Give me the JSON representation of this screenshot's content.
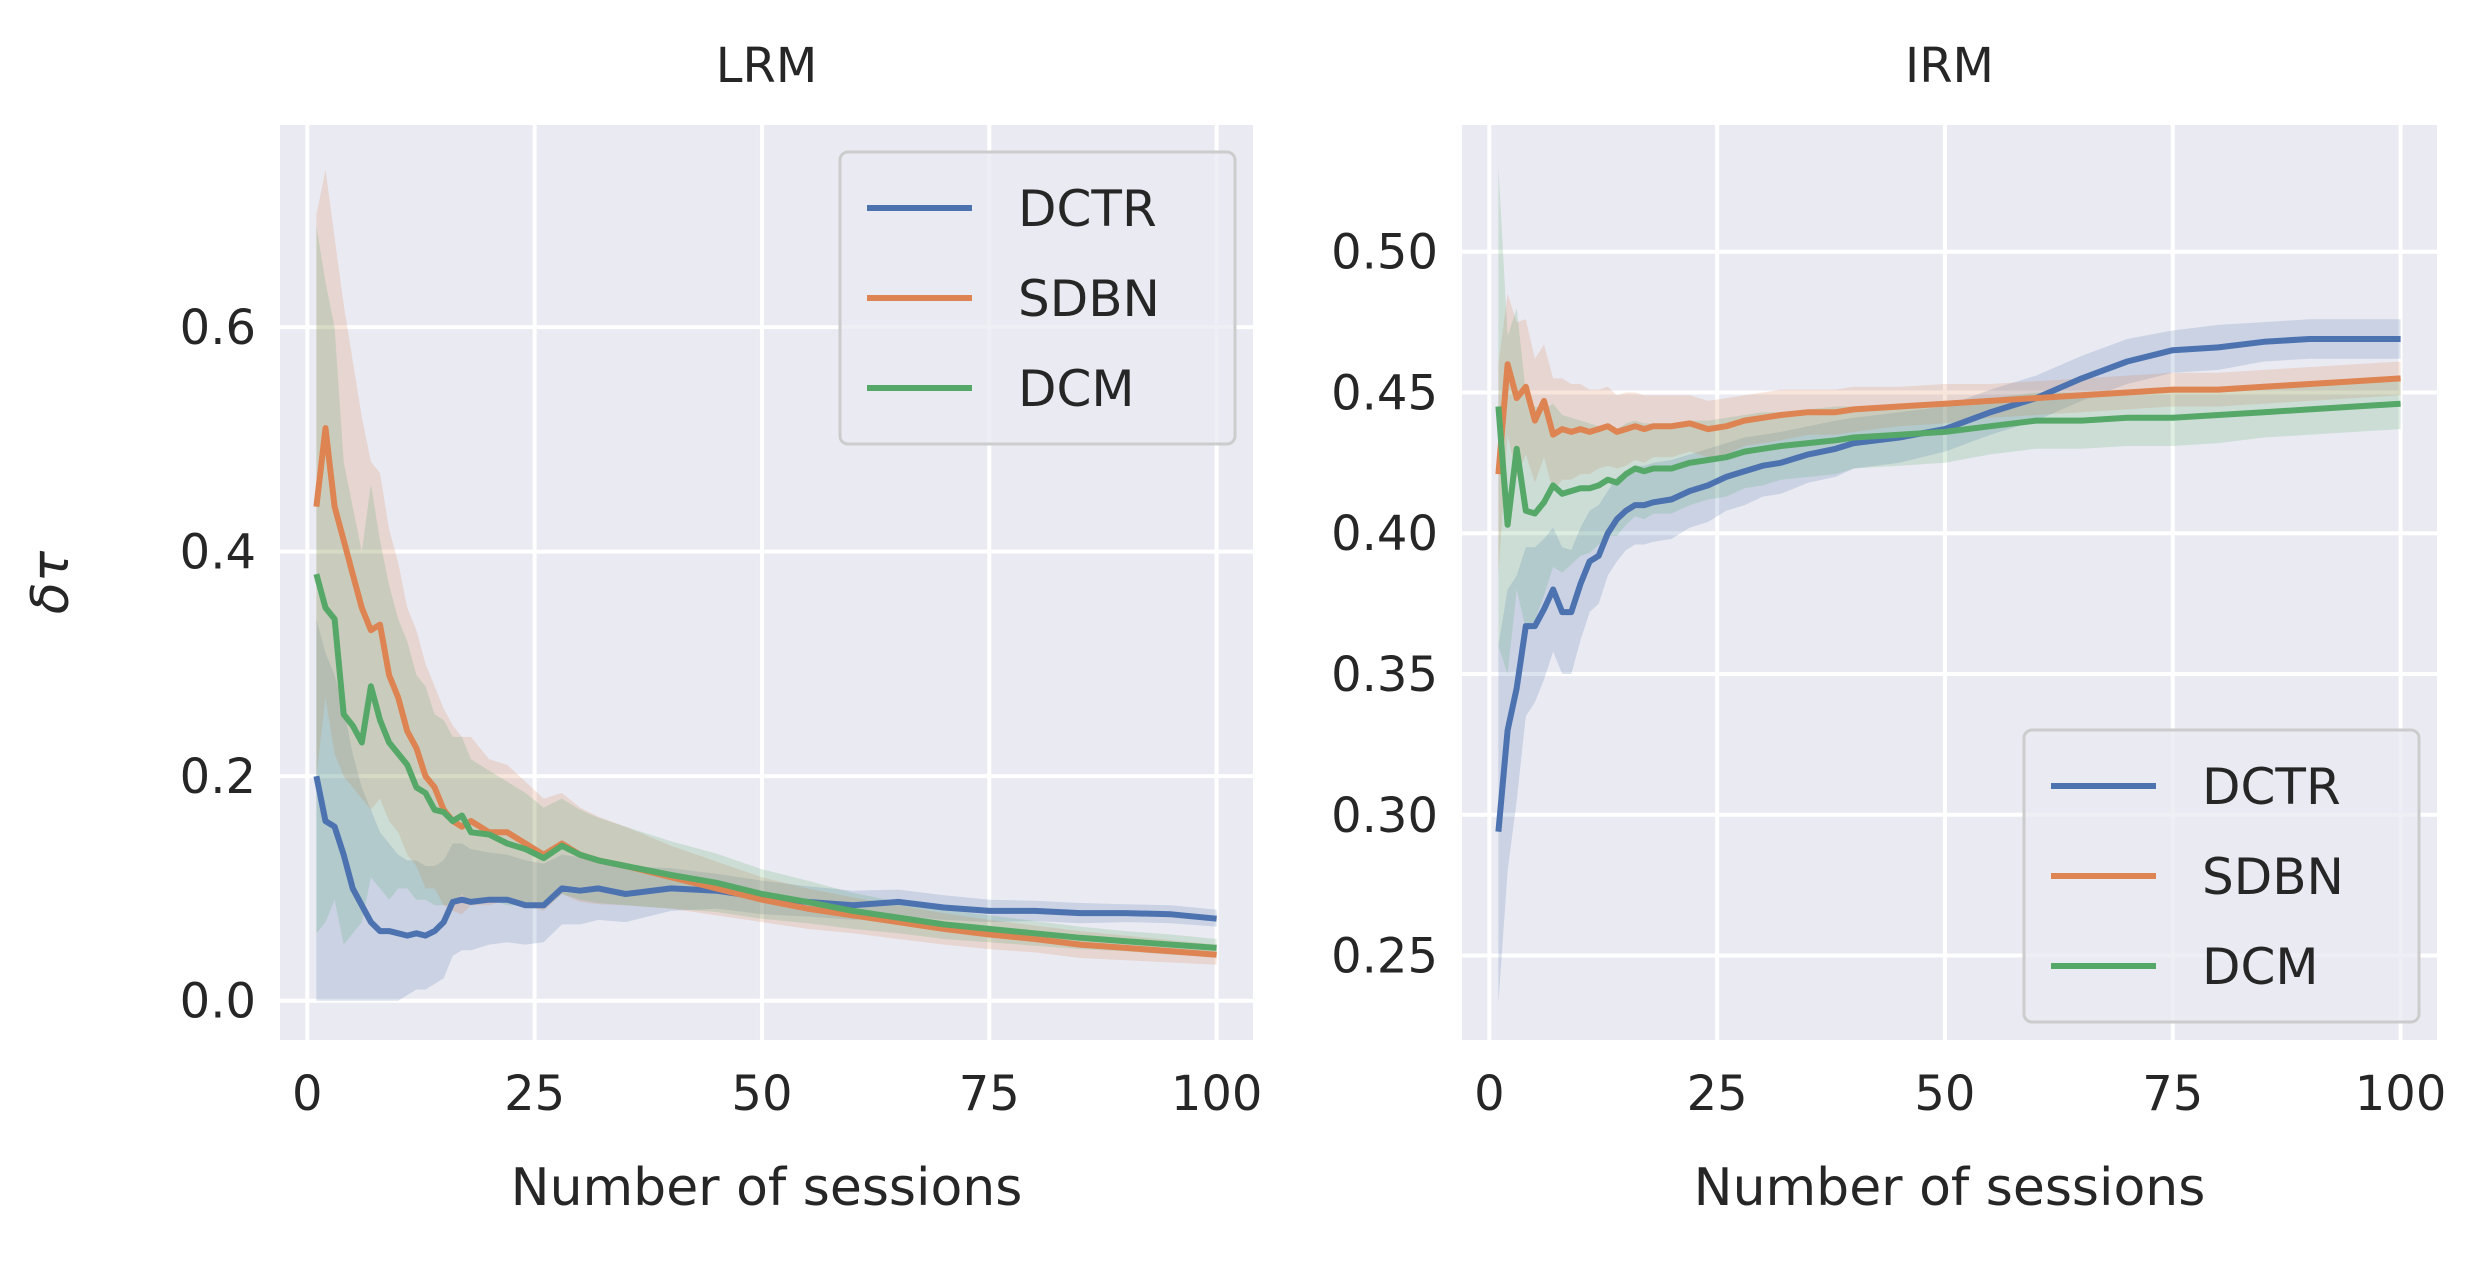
{
  "chart_data": [
    {
      "type": "line",
      "title": "LRM",
      "xlabel": "Number of sessions",
      "ylabel": "δτ",
      "xlim": [
        -3,
        104
      ],
      "ylim": [
        -0.035,
        0.78
      ],
      "xticks": [
        0,
        25,
        50,
        75,
        100
      ],
      "xtick_labels": [
        "0",
        "25",
        "50",
        "75",
        "100"
      ],
      "yticks": [
        0.0,
        0.2,
        0.4,
        0.6
      ],
      "ytick_labels": [
        "0.0",
        "0.2",
        "0.4",
        "0.6"
      ],
      "grid": true,
      "legend_position": "top-right",
      "series": [
        {
          "name": "DCTR",
          "color": "#4c72b0",
          "x": [
            1,
            2,
            3,
            4,
            5,
            6,
            7,
            8,
            9,
            10,
            11,
            12,
            13,
            14,
            15,
            16,
            17,
            18,
            20,
            22,
            24,
            26,
            28,
            30,
            32,
            35,
            40,
            45,
            50,
            55,
            60,
            65,
            70,
            75,
            80,
            85,
            90,
            95,
            100
          ],
          "y": [
            0.2,
            0.16,
            0.155,
            0.13,
            0.1,
            0.085,
            0.07,
            0.062,
            0.062,
            0.06,
            0.058,
            0.06,
            0.058,
            0.062,
            0.07,
            0.088,
            0.09,
            0.088,
            0.09,
            0.09,
            0.085,
            0.085,
            0.1,
            0.098,
            0.1,
            0.095,
            0.1,
            0.098,
            0.092,
            0.088,
            0.085,
            0.088,
            0.083,
            0.08,
            0.08,
            0.078,
            0.078,
            0.077,
            0.073
          ],
          "upper": [
            0.34,
            0.31,
            0.29,
            0.26,
            0.22,
            0.19,
            0.17,
            0.15,
            0.14,
            0.13,
            0.125,
            0.125,
            0.12,
            0.12,
            0.125,
            0.14,
            0.14,
            0.135,
            0.132,
            0.13,
            0.125,
            0.122,
            0.13,
            0.128,
            0.127,
            0.12,
            0.118,
            0.113,
            0.107,
            0.102,
            0.098,
            0.099,
            0.094,
            0.09,
            0.089,
            0.087,
            0.086,
            0.085,
            0.081
          ],
          "lower": [
            0.0,
            0.0,
            0.0,
            0.0,
            0.0,
            0.0,
            0.0,
            0.0,
            0.0,
            0.0,
            0.005,
            0.01,
            0.01,
            0.015,
            0.02,
            0.04,
            0.045,
            0.045,
            0.05,
            0.052,
            0.05,
            0.052,
            0.068,
            0.068,
            0.072,
            0.07,
            0.08,
            0.082,
            0.077,
            0.075,
            0.072,
            0.076,
            0.072,
            0.07,
            0.071,
            0.069,
            0.07,
            0.069,
            0.066
          ]
        },
        {
          "name": "SDBN",
          "color": "#dd8452",
          "x": [
            1,
            2,
            3,
            4,
            5,
            6,
            7,
            8,
            9,
            10,
            11,
            12,
            13,
            14,
            15,
            16,
            17,
            18,
            20,
            22,
            24,
            26,
            28,
            30,
            32,
            35,
            40,
            45,
            50,
            55,
            60,
            65,
            70,
            75,
            80,
            85,
            90,
            95,
            100
          ],
          "y": [
            0.44,
            0.51,
            0.44,
            0.41,
            0.38,
            0.35,
            0.33,
            0.335,
            0.29,
            0.27,
            0.24,
            0.225,
            0.2,
            0.19,
            0.17,
            0.16,
            0.155,
            0.16,
            0.15,
            0.15,
            0.14,
            0.13,
            0.14,
            0.13,
            0.125,
            0.12,
            0.11,
            0.1,
            0.09,
            0.082,
            0.076,
            0.07,
            0.064,
            0.059,
            0.055,
            0.05,
            0.047,
            0.044,
            0.041
          ],
          "upper": [
            0.7,
            0.74,
            0.68,
            0.62,
            0.57,
            0.52,
            0.48,
            0.47,
            0.42,
            0.39,
            0.35,
            0.33,
            0.3,
            0.28,
            0.26,
            0.245,
            0.235,
            0.235,
            0.215,
            0.21,
            0.195,
            0.18,
            0.185,
            0.172,
            0.164,
            0.155,
            0.138,
            0.124,
            0.11,
            0.1,
            0.092,
            0.085,
            0.078,
            0.072,
            0.067,
            0.062,
            0.058,
            0.054,
            0.05
          ],
          "lower": [
            0.2,
            0.27,
            0.22,
            0.2,
            0.19,
            0.18,
            0.17,
            0.18,
            0.16,
            0.15,
            0.13,
            0.12,
            0.1,
            0.1,
            0.085,
            0.08,
            0.077,
            0.085,
            0.085,
            0.09,
            0.085,
            0.08,
            0.095,
            0.088,
            0.086,
            0.085,
            0.082,
            0.076,
            0.07,
            0.064,
            0.06,
            0.055,
            0.05,
            0.046,
            0.043,
            0.038,
            0.036,
            0.034,
            0.032
          ]
        },
        {
          "name": "DCM",
          "color": "#55a868",
          "x": [
            1,
            2,
            3,
            4,
            5,
            6,
            7,
            8,
            9,
            10,
            11,
            12,
            13,
            14,
            15,
            16,
            17,
            18,
            20,
            22,
            24,
            26,
            28,
            30,
            32,
            35,
            40,
            45,
            50,
            55,
            60,
            65,
            70,
            75,
            80,
            85,
            90,
            95,
            100
          ],
          "y": [
            0.38,
            0.35,
            0.34,
            0.255,
            0.245,
            0.23,
            0.28,
            0.25,
            0.23,
            0.22,
            0.21,
            0.19,
            0.185,
            0.17,
            0.168,
            0.16,
            0.165,
            0.15,
            0.148,
            0.14,
            0.135,
            0.127,
            0.138,
            0.13,
            0.125,
            0.12,
            0.112,
            0.105,
            0.095,
            0.088,
            0.08,
            0.074,
            0.068,
            0.064,
            0.06,
            0.056,
            0.053,
            0.05,
            0.047
          ],
          "upper": [
            0.69,
            0.64,
            0.6,
            0.48,
            0.44,
            0.4,
            0.46,
            0.41,
            0.37,
            0.34,
            0.32,
            0.29,
            0.28,
            0.255,
            0.25,
            0.235,
            0.235,
            0.215,
            0.205,
            0.195,
            0.185,
            0.172,
            0.18,
            0.17,
            0.163,
            0.155,
            0.142,
            0.131,
            0.117,
            0.107,
            0.096,
            0.088,
            0.081,
            0.076,
            0.071,
            0.066,
            0.062,
            0.059,
            0.055
          ],
          "lower": [
            0.06,
            0.07,
            0.09,
            0.05,
            0.06,
            0.07,
            0.11,
            0.1,
            0.09,
            0.1,
            0.1,
            0.09,
            0.09,
            0.085,
            0.085,
            0.085,
            0.095,
            0.085,
            0.09,
            0.085,
            0.085,
            0.082,
            0.095,
            0.09,
            0.087,
            0.085,
            0.082,
            0.079,
            0.073,
            0.069,
            0.064,
            0.06,
            0.055,
            0.052,
            0.049,
            0.046,
            0.044,
            0.041,
            0.039
          ]
        }
      ]
    },
    {
      "type": "line",
      "title": "IRM",
      "xlabel": "Number of sessions",
      "ylabel": "",
      "xlim": [
        -3,
        104
      ],
      "ylim": [
        0.22,
        0.545
      ],
      "xticks": [
        0,
        25,
        50,
        75,
        100
      ],
      "xtick_labels": [
        "0",
        "25",
        "50",
        "75",
        "100"
      ],
      "yticks": [
        0.25,
        0.3,
        0.35,
        0.4,
        0.45,
        0.5
      ],
      "ytick_labels": [
        "0.25",
        "0.30",
        "0.35",
        "0.40",
        "0.45",
        "0.50"
      ],
      "grid": true,
      "legend_position": "bottom-right",
      "series": [
        {
          "name": "DCTR",
          "color": "#4c72b0",
          "x": [
            1,
            2,
            3,
            4,
            5,
            6,
            7,
            8,
            9,
            10,
            11,
            12,
            13,
            14,
            15,
            16,
            17,
            18,
            20,
            22,
            24,
            26,
            28,
            30,
            32,
            35,
            38,
            40,
            45,
            50,
            55,
            60,
            65,
            70,
            75,
            80,
            85,
            90,
            95,
            100
          ],
          "y": [
            0.294,
            0.33,
            0.345,
            0.367,
            0.367,
            0.373,
            0.38,
            0.372,
            0.372,
            0.382,
            0.39,
            0.392,
            0.4,
            0.405,
            0.408,
            0.41,
            0.41,
            0.411,
            0.412,
            0.415,
            0.417,
            0.42,
            0.422,
            0.424,
            0.425,
            0.428,
            0.43,
            0.432,
            0.434,
            0.437,
            0.443,
            0.448,
            0.455,
            0.461,
            0.465,
            0.466,
            0.468,
            0.469,
            0.469,
            0.469
          ],
          "upper": [
            0.36,
            0.38,
            0.385,
            0.395,
            0.395,
            0.398,
            0.402,
            0.395,
            0.394,
            0.402,
            0.408,
            0.41,
            0.415,
            0.42,
            0.422,
            0.424,
            0.424,
            0.425,
            0.426,
            0.428,
            0.43,
            0.432,
            0.434,
            0.435,
            0.436,
            0.438,
            0.44,
            0.441,
            0.443,
            0.445,
            0.451,
            0.456,
            0.463,
            0.469,
            0.472,
            0.474,
            0.475,
            0.476,
            0.476,
            0.476
          ],
          "lower": [
            0.233,
            0.28,
            0.305,
            0.335,
            0.34,
            0.348,
            0.358,
            0.35,
            0.35,
            0.362,
            0.372,
            0.375,
            0.385,
            0.39,
            0.394,
            0.396,
            0.396,
            0.397,
            0.398,
            0.402,
            0.404,
            0.408,
            0.41,
            0.413,
            0.414,
            0.418,
            0.42,
            0.423,
            0.425,
            0.429,
            0.435,
            0.44,
            0.447,
            0.453,
            0.457,
            0.458,
            0.461,
            0.462,
            0.462,
            0.462
          ]
        },
        {
          "name": "SDBN",
          "color": "#dd8452",
          "x": [
            1,
            2,
            3,
            4,
            5,
            6,
            7,
            8,
            9,
            10,
            11,
            12,
            13,
            14,
            15,
            16,
            17,
            18,
            20,
            22,
            24,
            26,
            28,
            30,
            32,
            35,
            38,
            40,
            45,
            50,
            55,
            60,
            65,
            70,
            75,
            80,
            85,
            90,
            95,
            100
          ],
          "y": [
            0.421,
            0.46,
            0.448,
            0.452,
            0.44,
            0.447,
            0.435,
            0.437,
            0.436,
            0.437,
            0.436,
            0.437,
            0.438,
            0.436,
            0.437,
            0.438,
            0.437,
            0.438,
            0.438,
            0.439,
            0.437,
            0.438,
            0.44,
            0.441,
            0.442,
            0.443,
            0.443,
            0.444,
            0.445,
            0.446,
            0.447,
            0.448,
            0.449,
            0.45,
            0.451,
            0.451,
            0.452,
            0.453,
            0.454,
            0.455
          ],
          "upper": [
            0.46,
            0.485,
            0.475,
            0.476,
            0.462,
            0.467,
            0.455,
            0.455,
            0.453,
            0.453,
            0.451,
            0.451,
            0.452,
            0.449,
            0.45,
            0.45,
            0.449,
            0.449,
            0.449,
            0.449,
            0.447,
            0.448,
            0.449,
            0.45,
            0.451,
            0.451,
            0.451,
            0.452,
            0.452,
            0.453,
            0.453,
            0.454,
            0.455,
            0.456,
            0.457,
            0.457,
            0.458,
            0.459,
            0.46,
            0.461
          ],
          "lower": [
            0.385,
            0.435,
            0.42,
            0.428,
            0.418,
            0.427,
            0.415,
            0.419,
            0.419,
            0.421,
            0.421,
            0.423,
            0.424,
            0.423,
            0.424,
            0.426,
            0.425,
            0.427,
            0.427,
            0.429,
            0.427,
            0.428,
            0.431,
            0.432,
            0.433,
            0.435,
            0.435,
            0.436,
            0.438,
            0.439,
            0.441,
            0.442,
            0.443,
            0.444,
            0.445,
            0.445,
            0.446,
            0.447,
            0.448,
            0.449
          ]
        },
        {
          "name": "DCM",
          "color": "#55a868",
          "x": [
            1,
            2,
            3,
            4,
            5,
            6,
            7,
            8,
            9,
            10,
            11,
            12,
            13,
            14,
            15,
            16,
            17,
            18,
            20,
            22,
            24,
            26,
            28,
            30,
            32,
            35,
            38,
            40,
            45,
            50,
            55,
            60,
            65,
            70,
            75,
            80,
            85,
            90,
            95,
            100
          ],
          "y": [
            0.445,
            0.403,
            0.43,
            0.408,
            0.407,
            0.411,
            0.417,
            0.414,
            0.415,
            0.416,
            0.416,
            0.417,
            0.419,
            0.418,
            0.421,
            0.423,
            0.422,
            0.423,
            0.423,
            0.425,
            0.426,
            0.427,
            0.429,
            0.43,
            0.431,
            0.432,
            0.433,
            0.434,
            0.435,
            0.436,
            0.438,
            0.44,
            0.44,
            0.441,
            0.441,
            0.442,
            0.443,
            0.444,
            0.445,
            0.446
          ],
          "upper": [
            0.53,
            0.47,
            0.48,
            0.45,
            0.445,
            0.444,
            0.446,
            0.442,
            0.441,
            0.44,
            0.439,
            0.438,
            0.439,
            0.437,
            0.439,
            0.44,
            0.439,
            0.439,
            0.439,
            0.44,
            0.44,
            0.441,
            0.442,
            0.443,
            0.443,
            0.444,
            0.445,
            0.445,
            0.446,
            0.447,
            0.448,
            0.45,
            0.45,
            0.451,
            0.451,
            0.452,
            0.452,
            0.453,
            0.454,
            0.455
          ],
          "lower": [
            0.36,
            0.35,
            0.38,
            0.366,
            0.369,
            0.378,
            0.388,
            0.386,
            0.389,
            0.392,
            0.393,
            0.396,
            0.399,
            0.399,
            0.403,
            0.406,
            0.405,
            0.407,
            0.407,
            0.41,
            0.412,
            0.413,
            0.416,
            0.417,
            0.419,
            0.42,
            0.421,
            0.423,
            0.424,
            0.425,
            0.428,
            0.43,
            0.43,
            0.431,
            0.431,
            0.432,
            0.434,
            0.435,
            0.436,
            0.437
          ]
        }
      ]
    }
  ]
}
